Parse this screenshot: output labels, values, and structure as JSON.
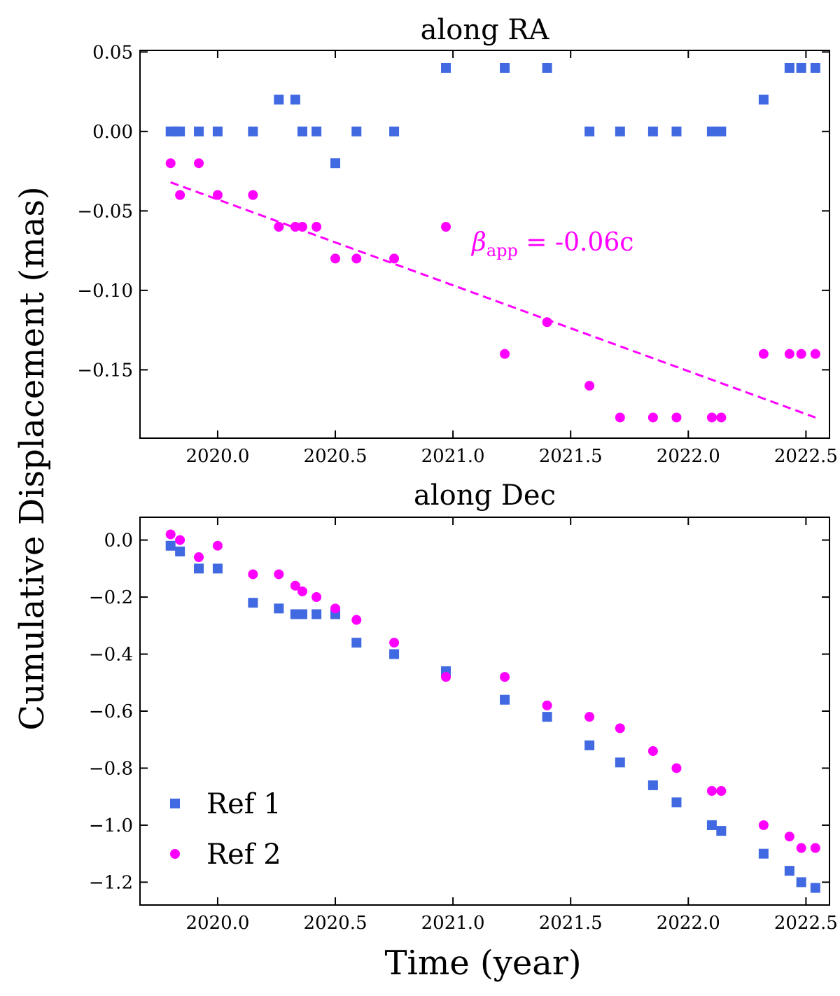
{
  "chart_data": {
    "type": "scatter",
    "ylabel": "Cumulative Displacement (mas)",
    "xlabel": "Time (year)",
    "xlim": [
      2019.67,
      2022.6
    ],
    "xticks": [
      2020.0,
      2020.5,
      2021.0,
      2021.5,
      2022.0,
      2022.5
    ],
    "xtick_labels": [
      "2020.0",
      "2020.5",
      "2021.0",
      "2021.5",
      "2022.0",
      "2022.5"
    ],
    "legend": {
      "location": "lower-left",
      "entries": [
        {
          "name": "Ref 1",
          "marker": "square",
          "color": "#4169e1"
        },
        {
          "name": "Ref 2",
          "marker": "circle",
          "color": "#ff00ff"
        }
      ]
    },
    "panels": [
      {
        "title": "along RA",
        "ylim": [
          -0.193,
          0.051
        ],
        "yticks": [
          0.05,
          0.0,
          -0.05,
          -0.1,
          -0.15
        ],
        "ytick_labels": [
          "0.05",
          "0.00",
          "−0.05",
          "−0.10",
          "−0.15"
        ],
        "series": [
          {
            "name": "Ref 1",
            "marker": "square",
            "color": "#4169e1",
            "x": [
              2019.8,
              2019.82,
              2019.84,
              2019.92,
              2020.0,
              2020.15,
              2020.26,
              2020.33,
              2020.36,
              2020.42,
              2020.5,
              2020.59,
              2020.75,
              2020.97,
              2021.22,
              2021.4,
              2021.58,
              2021.71,
              2021.85,
              2021.95,
              2022.1,
              2022.14,
              2022.32,
              2022.43,
              2022.48,
              2022.54
            ],
            "y": [
              0.0,
              0.0,
              0.0,
              0.0,
              0.0,
              0.0,
              0.02,
              0.02,
              0.0,
              0.0,
              -0.02,
              0.0,
              0.0,
              0.04,
              0.04,
              0.04,
              0.0,
              0.0,
              0.0,
              0.0,
              0.0,
              0.0,
              0.02,
              0.04,
              0.04,
              0.04
            ]
          },
          {
            "name": "Ref 2",
            "marker": "circle",
            "color": "#ff00ff",
            "x": [
              2019.8,
              2019.84,
              2019.92,
              2020.0,
              2020.15,
              2020.26,
              2020.33,
              2020.36,
              2020.42,
              2020.5,
              2020.59,
              2020.75,
              2020.97,
              2021.22,
              2021.4,
              2021.58,
              2021.71,
              2021.85,
              2021.95,
              2022.1,
              2022.14,
              2022.32,
              2022.43,
              2022.48,
              2022.54
            ],
            "y": [
              -0.02,
              -0.04,
              -0.02,
              -0.04,
              -0.04,
              -0.06,
              -0.06,
              -0.06,
              -0.06,
              -0.08,
              -0.08,
              -0.08,
              -0.06,
              -0.14,
              -0.12,
              -0.16,
              -0.18,
              -0.18,
              -0.18,
              -0.18,
              -0.18,
              -0.14,
              -0.14,
              -0.14,
              -0.14
            ]
          }
        ],
        "fit_line": {
          "color": "#ff00ff",
          "style": "dashed",
          "x": [
            2019.8,
            2022.54
          ],
          "y": [
            -0.032,
            -0.18
          ]
        },
        "annotation": {
          "text_symbol": "β",
          "text_subscript": "app",
          "text_rest": " = -0.06c",
          "color": "#ff00ff",
          "x": 2021.08,
          "y": -0.075
        }
      },
      {
        "title": "along Dec",
        "ylim": [
          -1.28,
          0.08
        ],
        "yticks": [
          0.0,
          -0.2,
          -0.4,
          -0.6,
          -0.8,
          -1.0,
          -1.2
        ],
        "ytick_labels": [
          "0.0",
          "−0.2",
          "−0.4",
          "−0.6",
          "−0.8",
          "−1.0",
          "−1.2"
        ],
        "series": [
          {
            "name": "Ref 1",
            "marker": "square",
            "color": "#4169e1",
            "x": [
              2019.8,
              2019.84,
              2019.92,
              2020.0,
              2020.15,
              2020.26,
              2020.33,
              2020.36,
              2020.42,
              2020.5,
              2020.59,
              2020.75,
              2020.97,
              2021.22,
              2021.4,
              2021.58,
              2021.71,
              2021.85,
              2021.95,
              2022.1,
              2022.14,
              2022.32,
              2022.43,
              2022.48,
              2022.54
            ],
            "y": [
              -0.02,
              -0.04,
              -0.1,
              -0.1,
              -0.22,
              -0.24,
              -0.26,
              -0.26,
              -0.26,
              -0.26,
              -0.36,
              -0.4,
              -0.46,
              -0.56,
              -0.62,
              -0.72,
              -0.78,
              -0.86,
              -0.92,
              -1.0,
              -1.02,
              -1.1,
              -1.16,
              -1.2,
              -1.22
            ]
          },
          {
            "name": "Ref 2",
            "marker": "circle",
            "color": "#ff00ff",
            "x": [
              2019.8,
              2019.84,
              2019.92,
              2020.0,
              2020.15,
              2020.26,
              2020.33,
              2020.36,
              2020.42,
              2020.5,
              2020.59,
              2020.75,
              2020.97,
              2021.22,
              2021.4,
              2021.58,
              2021.71,
              2021.85,
              2021.95,
              2022.1,
              2022.14,
              2022.32,
              2022.43,
              2022.48,
              2022.54
            ],
            "y": [
              0.02,
              0.0,
              -0.06,
              -0.02,
              -0.12,
              -0.12,
              -0.16,
              -0.18,
              -0.2,
              -0.24,
              -0.28,
              -0.36,
              -0.48,
              -0.48,
              -0.58,
              -0.62,
              -0.66,
              -0.74,
              -0.8,
              -0.88,
              -0.88,
              -1.0,
              -1.04,
              -1.08,
              -1.08
            ]
          }
        ]
      }
    ]
  }
}
